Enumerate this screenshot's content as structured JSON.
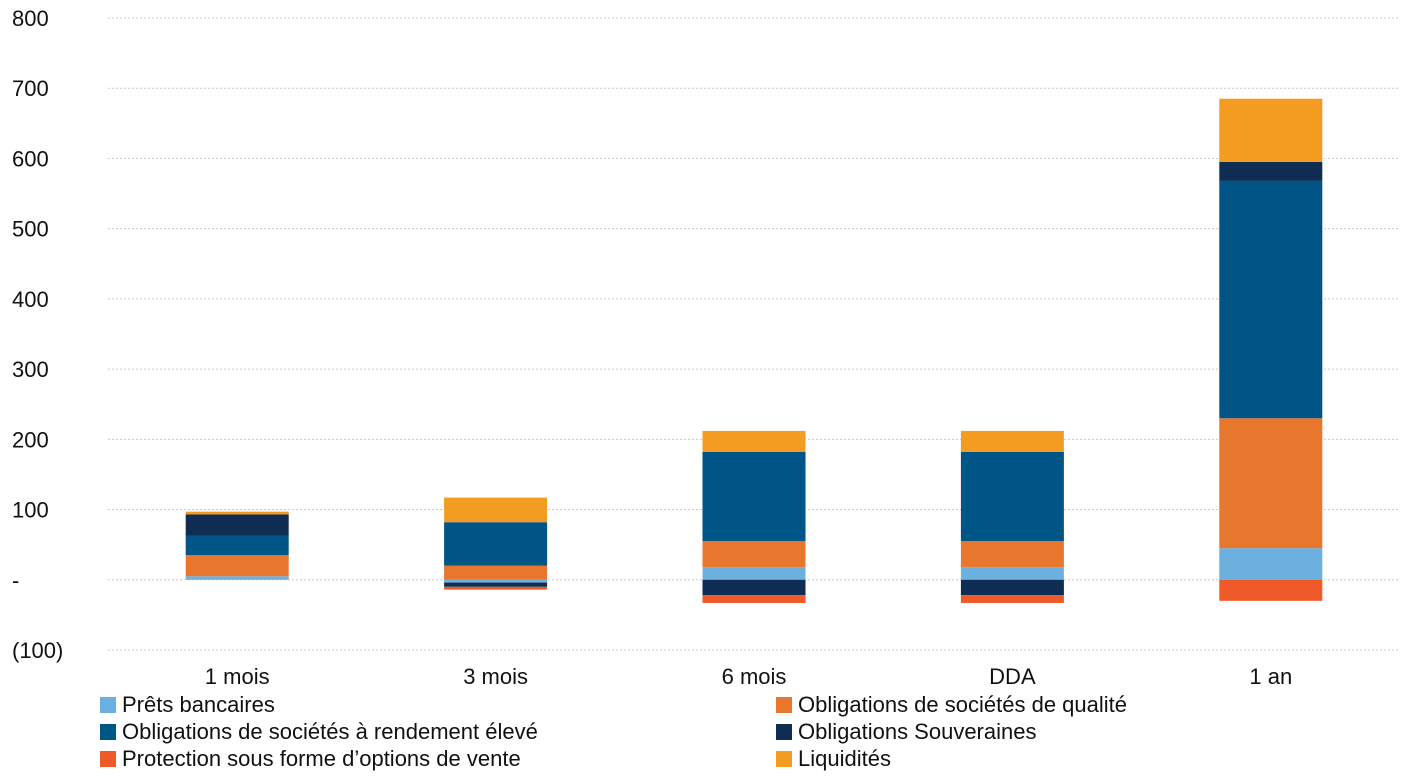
{
  "chart_data": {
    "type": "bar",
    "stacked": true,
    "title": "",
    "xlabel": "",
    "ylabel": "",
    "ylim": [
      -100,
      800
    ],
    "yticks": [
      {
        "value": 800,
        "label": "800"
      },
      {
        "value": 700,
        "label": "700"
      },
      {
        "value": 600,
        "label": "600"
      },
      {
        "value": 500,
        "label": "500"
      },
      {
        "value": 400,
        "label": "400"
      },
      {
        "value": 300,
        "label": "300"
      },
      {
        "value": 200,
        "label": "200"
      },
      {
        "value": 100,
        "label": "100"
      },
      {
        "value": 0,
        "label": "-"
      },
      {
        "value": -100,
        "label": "(100)"
      }
    ],
    "grid": true,
    "legend_position": "bottom",
    "categories": [
      "1 mois",
      "3 mois",
      "6 mois",
      "DDA",
      "1 an"
    ],
    "series": [
      {
        "name": "Prêts bancaires",
        "color": "#6cb0e0",
        "values": [
          5,
          -4,
          18,
          18,
          45
        ]
      },
      {
        "name": "Obligations de sociétés de qualité",
        "color": "#e8762c",
        "values": [
          30,
          20,
          37,
          37,
          185
        ]
      },
      {
        "name": "Obligations de sociétés à rendement élevé",
        "color": "#005587",
        "values": [
          28,
          62,
          127,
          127,
          338
        ]
      },
      {
        "name": "Obligations Souveraines",
        "color": "#0f2d52",
        "values": [
          30,
          -6,
          -22,
          -22,
          27
        ]
      },
      {
        "name": "Protection sous forme d’options de vente",
        "color": "#f05a28",
        "values": [
          0,
          -4,
          -11,
          -11,
          -30
        ]
      },
      {
        "name": "Liquidités",
        "color": "#f39c21",
        "values": [
          4,
          35,
          30,
          30,
          90
        ]
      }
    ]
  }
}
